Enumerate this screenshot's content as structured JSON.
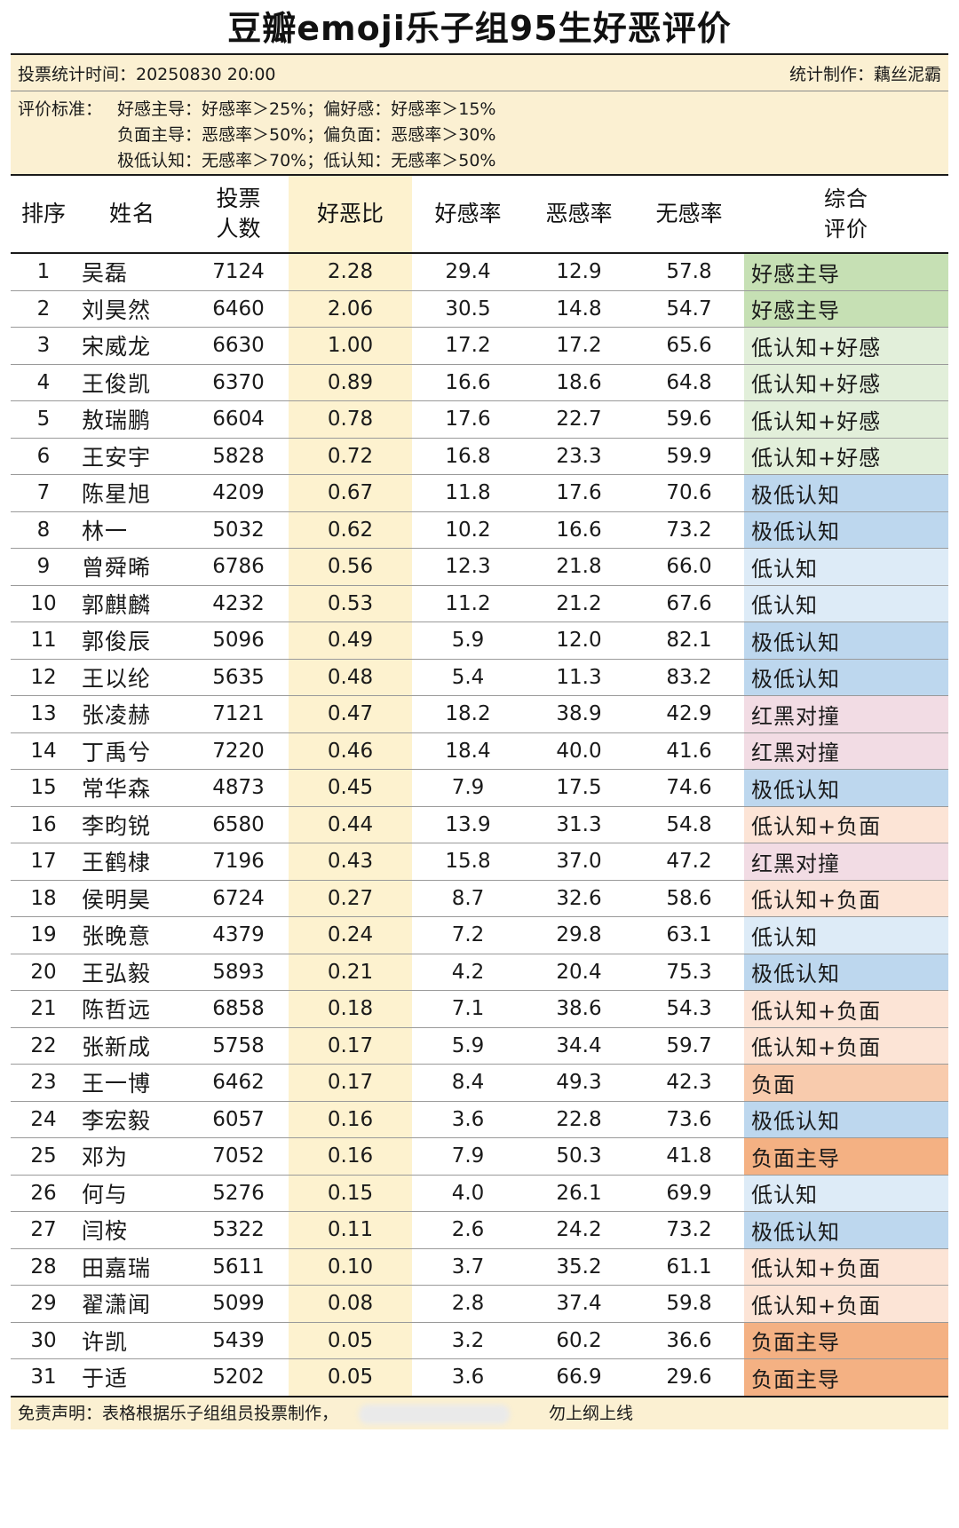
{
  "title": "豆瓣emoji乐子组95生好恶评价",
  "meta": {
    "vote_time": "投票统计时间：20250830 20:00",
    "author": "统计制作：藕丝泥霸"
  },
  "criteria": {
    "label": "评价标准：",
    "lines": [
      "好感主导：好感率＞25%；偏好感：好感率＞15%",
      "负面主导：恶感率＞50%；偏负面：恶感率＞30%",
      "极低认知：无感率＞70%；低认知：无感率＞50%"
    ]
  },
  "headers": {
    "rank": "排序",
    "name": "姓名",
    "votes": "投票\n人数",
    "ratio": "好恶比",
    "fav": "好感率",
    "dis": "恶感率",
    "none": "无感率",
    "eval": "综合\n评价"
  },
  "colors": {
    "好感主导": "#c6e0b4",
    "低认知+好感": "#e2efda",
    "极低认知": "#bdd7ee",
    "低认知": "#ddebf7",
    "红黑对撞": "#f2dce4",
    "低认知+负面": "#fce4d6",
    "负面": "#f8cbad",
    "负面主导": "#f4b183"
  },
  "rows": [
    {
      "rank": "1",
      "name": "吴磊",
      "votes": "7124",
      "ratio": "2.28",
      "fav": "29.4",
      "dis": "12.9",
      "none": "57.8",
      "eval": "好感主导"
    },
    {
      "rank": "2",
      "name": "刘昊然",
      "votes": "6460",
      "ratio": "2.06",
      "fav": "30.5",
      "dis": "14.8",
      "none": "54.7",
      "eval": "好感主导"
    },
    {
      "rank": "3",
      "name": "宋威龙",
      "votes": "6630",
      "ratio": "1.00",
      "fav": "17.2",
      "dis": "17.2",
      "none": "65.6",
      "eval": "低认知+好感"
    },
    {
      "rank": "4",
      "name": "王俊凯",
      "votes": "6370",
      "ratio": "0.89",
      "fav": "16.6",
      "dis": "18.6",
      "none": "64.8",
      "eval": "低认知+好感"
    },
    {
      "rank": "5",
      "name": "敖瑞鹏",
      "votes": "6604",
      "ratio": "0.78",
      "fav": "17.6",
      "dis": "22.7",
      "none": "59.6",
      "eval": "低认知+好感"
    },
    {
      "rank": "6",
      "name": "王安宇",
      "votes": "5828",
      "ratio": "0.72",
      "fav": "16.8",
      "dis": "23.3",
      "none": "59.9",
      "eval": "低认知+好感"
    },
    {
      "rank": "7",
      "name": "陈星旭",
      "votes": "4209",
      "ratio": "0.67",
      "fav": "11.8",
      "dis": "17.6",
      "none": "70.6",
      "eval": "极低认知"
    },
    {
      "rank": "8",
      "name": "林一",
      "votes": "5032",
      "ratio": "0.62",
      "fav": "10.2",
      "dis": "16.6",
      "none": "73.2",
      "eval": "极低认知"
    },
    {
      "rank": "9",
      "name": "曾舜晞",
      "votes": "6786",
      "ratio": "0.56",
      "fav": "12.3",
      "dis": "21.8",
      "none": "66.0",
      "eval": "低认知"
    },
    {
      "rank": "10",
      "name": "郭麒麟",
      "votes": "4232",
      "ratio": "0.53",
      "fav": "11.2",
      "dis": "21.2",
      "none": "67.6",
      "eval": "低认知"
    },
    {
      "rank": "11",
      "name": "郭俊辰",
      "votes": "5096",
      "ratio": "0.49",
      "fav": "5.9",
      "dis": "12.0",
      "none": "82.1",
      "eval": "极低认知"
    },
    {
      "rank": "12",
      "name": "王以纶",
      "votes": "5635",
      "ratio": "0.48",
      "fav": "5.4",
      "dis": "11.3",
      "none": "83.2",
      "eval": "极低认知"
    },
    {
      "rank": "13",
      "name": "张凌赫",
      "votes": "7121",
      "ratio": "0.47",
      "fav": "18.2",
      "dis": "38.9",
      "none": "42.9",
      "eval": "红黑对撞"
    },
    {
      "rank": "14",
      "name": "丁禹兮",
      "votes": "7220",
      "ratio": "0.46",
      "fav": "18.4",
      "dis": "40.0",
      "none": "41.6",
      "eval": "红黑对撞"
    },
    {
      "rank": "15",
      "name": "常华森",
      "votes": "4873",
      "ratio": "0.45",
      "fav": "7.9",
      "dis": "17.5",
      "none": "74.6",
      "eval": "极低认知"
    },
    {
      "rank": "16",
      "name": "李昀锐",
      "votes": "6580",
      "ratio": "0.44",
      "fav": "13.9",
      "dis": "31.3",
      "none": "54.8",
      "eval": "低认知+负面"
    },
    {
      "rank": "17",
      "name": "王鹤棣",
      "votes": "7196",
      "ratio": "0.43",
      "fav": "15.8",
      "dis": "37.0",
      "none": "47.2",
      "eval": "红黑对撞"
    },
    {
      "rank": "18",
      "name": "侯明昊",
      "votes": "6724",
      "ratio": "0.27",
      "fav": "8.7",
      "dis": "32.6",
      "none": "58.6",
      "eval": "低认知+负面"
    },
    {
      "rank": "19",
      "name": "张晚意",
      "votes": "4379",
      "ratio": "0.24",
      "fav": "7.2",
      "dis": "29.8",
      "none": "63.1",
      "eval": "低认知"
    },
    {
      "rank": "20",
      "name": "王弘毅",
      "votes": "5893",
      "ratio": "0.21",
      "fav": "4.2",
      "dis": "20.4",
      "none": "75.3",
      "eval": "极低认知"
    },
    {
      "rank": "21",
      "name": "陈哲远",
      "votes": "6858",
      "ratio": "0.18",
      "fav": "7.1",
      "dis": "38.6",
      "none": "54.3",
      "eval": "低认知+负面"
    },
    {
      "rank": "22",
      "name": "张新成",
      "votes": "5758",
      "ratio": "0.17",
      "fav": "5.9",
      "dis": "34.4",
      "none": "59.7",
      "eval": "低认知+负面"
    },
    {
      "rank": "23",
      "name": "王一博",
      "votes": "6462",
      "ratio": "0.17",
      "fav": "8.4",
      "dis": "49.3",
      "none": "42.3",
      "eval": "负面"
    },
    {
      "rank": "24",
      "name": "李宏毅",
      "votes": "6057",
      "ratio": "0.16",
      "fav": "3.6",
      "dis": "22.8",
      "none": "73.6",
      "eval": "极低认知"
    },
    {
      "rank": "25",
      "name": "邓为",
      "votes": "7052",
      "ratio": "0.16",
      "fav": "7.9",
      "dis": "50.3",
      "none": "41.8",
      "eval": "负面主导"
    },
    {
      "rank": "26",
      "name": "何与",
      "votes": "5276",
      "ratio": "0.15",
      "fav": "4.0",
      "dis": "26.1",
      "none": "69.9",
      "eval": "低认知"
    },
    {
      "rank": "27",
      "name": "闫桉",
      "votes": "5322",
      "ratio": "0.11",
      "fav": "2.6",
      "dis": "24.2",
      "none": "73.2",
      "eval": "极低认知"
    },
    {
      "rank": "28",
      "name": "田嘉瑞",
      "votes": "5611",
      "ratio": "0.10",
      "fav": "3.7",
      "dis": "35.2",
      "none": "61.1",
      "eval": "低认知+负面"
    },
    {
      "rank": "29",
      "name": "翟潇闻",
      "votes": "5099",
      "ratio": "0.08",
      "fav": "2.8",
      "dis": "37.4",
      "none": "59.8",
      "eval": "低认知+负面"
    },
    {
      "rank": "30",
      "name": "许凯",
      "votes": "5439",
      "ratio": "0.05",
      "fav": "3.2",
      "dis": "60.2",
      "none": "36.6",
      "eval": "负面主导"
    },
    {
      "rank": "31",
      "name": "于适",
      "votes": "5202",
      "ratio": "0.05",
      "fav": "3.6",
      "dis": "66.9",
      "none": "29.6",
      "eval": "负面主导"
    }
  ],
  "footer": {
    "left": "免责声明：表格根据乐子组组员投票制作，",
    "right": "勿上纲上线"
  }
}
